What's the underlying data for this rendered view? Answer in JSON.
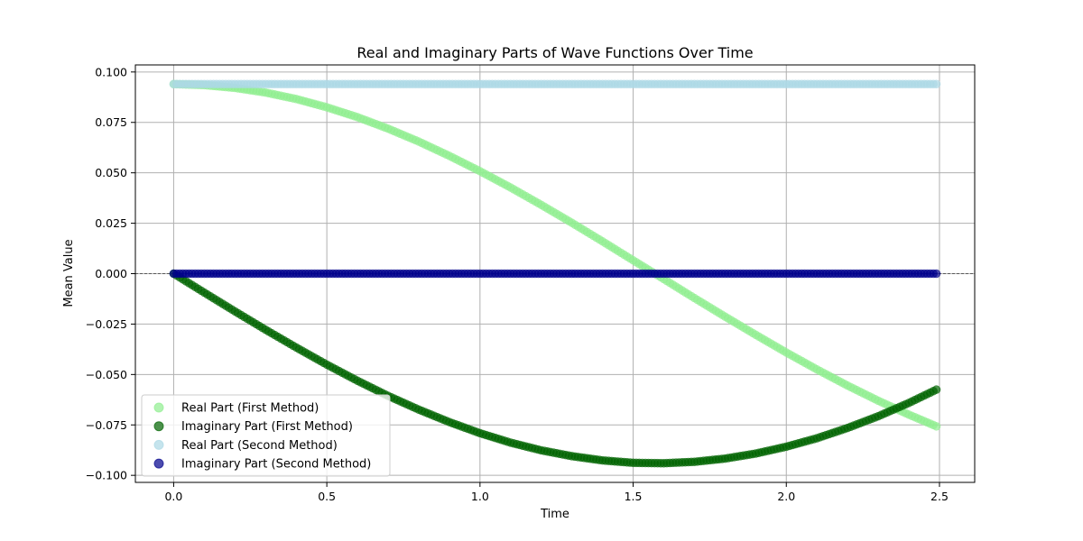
{
  "chart_data": {
    "type": "scatter",
    "title": "Real and Imaginary Parts of Wave Functions Over Time",
    "xlabel": "Time",
    "ylabel": "Mean Value",
    "xlim": [
      -0.125,
      2.615
    ],
    "ylim": [
      -0.1035,
      0.1035
    ],
    "xticks": [
      0.0,
      0.5,
      1.0,
      1.5,
      2.0,
      2.5
    ],
    "xtick_labels": [
      "0.0",
      "0.5",
      "1.0",
      "1.5",
      "2.0",
      "2.5"
    ],
    "yticks": [
      0.1,
      0.075,
      0.05,
      0.025,
      0.0,
      -0.025,
      -0.05,
      -0.075,
      -0.1
    ],
    "ytick_labels": [
      "0.100",
      "0.075",
      "0.050",
      "0.025",
      "0.000",
      "−0.025",
      "−0.050",
      "−0.075",
      "−0.100"
    ],
    "grid": true,
    "legend_position": "lower-left",
    "zero_line": {
      "y": 0.0,
      "style": "dashed",
      "color": "#000000"
    },
    "x": [
      0.0,
      0.1,
      0.2,
      0.3,
      0.4,
      0.5,
      0.6,
      0.7,
      0.8,
      0.9,
      1.0,
      1.1,
      1.2,
      1.3,
      1.4,
      1.5,
      1.6,
      1.7,
      1.8,
      1.9,
      2.0,
      2.1,
      2.2,
      2.3,
      2.4,
      2.49
    ],
    "series": [
      {
        "name": "Real Part (First Method)",
        "color": "#90ee90",
        "alpha": 0.7,
        "values": [
          0.094,
          0.0935,
          0.0921,
          0.0898,
          0.0866,
          0.0825,
          0.0776,
          0.0719,
          0.0655,
          0.0584,
          0.0508,
          0.0427,
          0.0341,
          0.0252,
          0.016,
          0.0066,
          -0.0027,
          -0.0121,
          -0.0213,
          -0.0303,
          -0.0391,
          -0.0475,
          -0.0555,
          -0.063,
          -0.0699,
          -0.0757
        ]
      },
      {
        "name": "Imaginary Part (First Method)",
        "color": "#006400",
        "alpha": 0.7,
        "values": [
          0.0,
          -0.0094,
          -0.0187,
          -0.0278,
          -0.0366,
          -0.0451,
          -0.0531,
          -0.0606,
          -0.0674,
          -0.0736,
          -0.0791,
          -0.0838,
          -0.0876,
          -0.0905,
          -0.0926,
          -0.0938,
          -0.094,
          -0.0933,
          -0.0917,
          -0.0892,
          -0.0858,
          -0.0816,
          -0.0765,
          -0.0707,
          -0.0641,
          -0.0575
        ]
      },
      {
        "name": "Real Part (Second Method)",
        "color": "#add8e6",
        "alpha": 0.7,
        "values": [
          0.094,
          0.094,
          0.094,
          0.094,
          0.094,
          0.094,
          0.094,
          0.094,
          0.094,
          0.094,
          0.094,
          0.094,
          0.094,
          0.094,
          0.094,
          0.094,
          0.094,
          0.094,
          0.094,
          0.094,
          0.094,
          0.094,
          0.094,
          0.094,
          0.094,
          0.094
        ]
      },
      {
        "name": "Imaginary Part (Second Method)",
        "color": "#00008b",
        "alpha": 0.7,
        "values": [
          0.0,
          0.0,
          0.0,
          0.0,
          0.0,
          0.0,
          0.0,
          0.0,
          0.0,
          0.0,
          0.0,
          0.0,
          0.0,
          0.0,
          0.0,
          0.0,
          0.0,
          0.0,
          0.0,
          0.0,
          0.0,
          0.0,
          0.0,
          0.0,
          0.0,
          0.0
        ]
      }
    ]
  }
}
